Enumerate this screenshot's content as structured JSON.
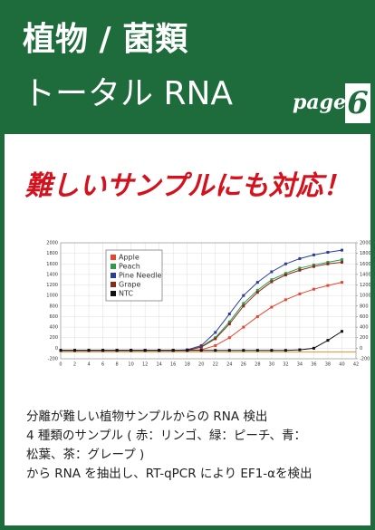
{
  "header": {
    "title_line1": "植物 / 菌類",
    "title_line2": "トータル RNA",
    "page_label": "page",
    "page_number": "6"
  },
  "headline": "難しいサンプルにも対応！",
  "chart_data": {
    "type": "line",
    "x": [
      0,
      2,
      4,
      6,
      8,
      10,
      12,
      14,
      16,
      18,
      20,
      22,
      24,
      26,
      28,
      30,
      32,
      34,
      36,
      38,
      40
    ],
    "series": [
      {
        "name": "Apple",
        "color": "#e8452c",
        "values": [
          -40,
          -40,
          -40,
          -40,
          -40,
          -40,
          -40,
          -40,
          -40,
          -40,
          -30,
          50,
          200,
          400,
          600,
          780,
          920,
          1030,
          1120,
          1190,
          1250
        ]
      },
      {
        "name": "Peach",
        "color": "#2e9a4a",
        "values": [
          -40,
          -40,
          -40,
          -40,
          -40,
          -40,
          -40,
          -40,
          -40,
          -40,
          30,
          200,
          500,
          850,
          1100,
          1300,
          1420,
          1520,
          1580,
          1630,
          1680
        ]
      },
      {
        "name": "Pine Needle",
        "color": "#2b3c9e",
        "values": [
          -40,
          -40,
          -40,
          -40,
          -40,
          -40,
          -40,
          -40,
          -40,
          -30,
          50,
          300,
          650,
          1000,
          1250,
          1450,
          1600,
          1700,
          1770,
          1820,
          1860
        ]
      },
      {
        "name": "Grape",
        "color": "#8b2a1a",
        "values": [
          -40,
          -40,
          -40,
          -40,
          -40,
          -40,
          -40,
          -40,
          -40,
          -40,
          20,
          180,
          460,
          800,
          1060,
          1260,
          1390,
          1480,
          1550,
          1600,
          1630
        ]
      },
      {
        "name": "NTC",
        "color": "#111111",
        "values": [
          -40,
          -40,
          -40,
          -40,
          -40,
          -40,
          -40,
          -40,
          -40,
          -40,
          -40,
          -40,
          -40,
          -40,
          -40,
          -40,
          -40,
          -30,
          0,
          150,
          320
        ]
      }
    ],
    "xlim": [
      0,
      42
    ],
    "ylim": [
      -200,
      2000
    ],
    "y2lim": [
      -200,
      2000
    ],
    "xticks": [
      0,
      2,
      4,
      6,
      8,
      10,
      12,
      14,
      16,
      18,
      20,
      22,
      24,
      26,
      28,
      30,
      32,
      34,
      36,
      38,
      40,
      42
    ],
    "yticks": [
      -200,
      0,
      200,
      400,
      600,
      800,
      1000,
      1200,
      1400,
      1600,
      1800,
      2000
    ],
    "y2ticks": [
      -200,
      0,
      200,
      400,
      600,
      800,
      1000,
      1200,
      1400,
      1600,
      1800,
      2000
    ],
    "grid": true,
    "legend": "upper left"
  },
  "body": {
    "lines": [
      "分離が難しい植物サンプルからの RNA 検出",
      "4 種類のサンプル ( 赤：リンゴ、緑：ピーチ、青：",
      "松葉、茶：グレープ )",
      "から RNA を抽出し、RT-qPCR により EF1-αを検出"
    ]
  }
}
